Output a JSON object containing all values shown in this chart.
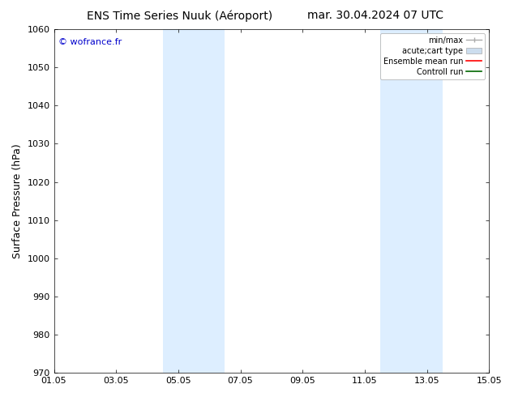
{
  "title_left": "ENS Time Series Nuuk (Aéroport)",
  "title_right": "mar. 30.04.2024 07 UTC",
  "ylabel": "Surface Pressure (hPa)",
  "ylim": [
    970,
    1060
  ],
  "yticks": [
    970,
    980,
    990,
    1000,
    1010,
    1020,
    1030,
    1040,
    1050,
    1060
  ],
  "xtick_labels": [
    "01.05",
    "03.05",
    "05.05",
    "07.05",
    "09.05",
    "11.05",
    "13.05",
    "15.05"
  ],
  "xtick_positions": [
    0,
    2,
    4,
    6,
    8,
    10,
    12,
    14
  ],
  "shaded_bands": [
    {
      "xstart": 3.5,
      "xend": 5.5
    },
    {
      "xstart": 10.5,
      "xend": 12.5
    }
  ],
  "shade_color": "#ddeeff",
  "background_color": "#ffffff",
  "watermark_text": "© wofrance.fr",
  "watermark_color": "#0000cc",
  "legend_entries": [
    {
      "label": "min/max",
      "color": "#aaaaaa",
      "type": "errorbar"
    },
    {
      "label": "acute;cart type",
      "color": "#ccddee",
      "type": "box"
    },
    {
      "label": "Ensemble mean run",
      "color": "#ff0000",
      "type": "line"
    },
    {
      "label": "Controll run",
      "color": "#006600",
      "type": "line"
    }
  ],
  "title_fontsize": 10,
  "tick_fontsize": 8,
  "ylabel_fontsize": 9,
  "legend_fontsize": 7
}
